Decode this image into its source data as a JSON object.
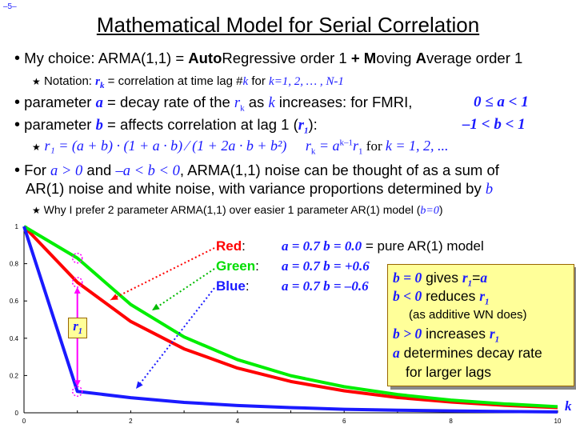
{
  "page_number": "–5–",
  "title": "Mathematical Model for Serial Correlation",
  "bullets": {
    "b1_prefix": "My choice: ARMA(1,1) = ",
    "b1_auto": "Auto",
    "b1_regressive": "Regressive",
    "b1_order1a": " order 1 ",
    "b1_plus": "+",
    "b1_moving": "M",
    "b1_oving": "oving ",
    "b1_average": "A",
    "b1_verage": "verage order 1",
    "s1_label": "Notation:",
    "s1_r": "r",
    "s1_k": "k",
    "s1_eq": " = correlation at time lag #",
    "s1_kvar": "k",
    "s1_for": " for ",
    "s1_range": "k=1, 2, … , N-1",
    "b2_text1": "parameter ",
    "b2_a": "a",
    "b2_text2": " = decay rate of the ",
    "b2_r": "r",
    "b2_k": "k",
    "b2_text3": " as ",
    "b2_kvar": "k",
    "b2_text4": " increases: for FMRI,",
    "b2_range": "0 ≤ a < 1",
    "b3_text1": "parameter ",
    "b3_b": "b",
    "b3_text2": " = affects correlation at lag 1 (",
    "b3_r1": "r",
    "b3_1": "1",
    "b3_text3": "):",
    "b3_range": "–1 < b < 1",
    "s2_formula": "r₁ = (a + b) · (1 + a · b) ⁄ (1 + 2a · b + b²)",
    "s2_rk": "r",
    "s2_rk_sub": "k",
    "s2_eq": " = a",
    "s2_exp": "k–1",
    "s2_r1": "r",
    "s2_r1_sub": "1",
    "s2_for": " for ",
    "s2_krange": "k = 1, 2, ...",
    "b4_text1": "For ",
    "b4_cond1": "a > 0",
    "b4_and": " and ",
    "b4_cond2": "–a < b < 0",
    "b4_text2": ", ARMA(1,1) noise can be thought of as a sum of",
    "b4_line2": "AR(1) noise and white noise, with variance proportions determined by ",
    "b4_b": "b",
    "s3_text": "Why I prefer 2 parameter ARMA(1,1) over easier 1 parameter AR(1) model (",
    "s3_b0": "b=0",
    "s3_close": ")"
  },
  "legend": {
    "red_label": "Red",
    "red_colon": ":",
    "red_params": "a = 0.7  b =   0.0",
    "red_desc": " = pure AR(1) model",
    "green_label": "Green",
    "green_colon": ":",
    "green_params": "a = 0.7  b = +0.6",
    "blue_label": "Blue",
    "blue_colon": ":",
    "blue_params": "a = 0.7  b = –0.6"
  },
  "note_box": {
    "l1_b": "b = 0",
    "l1_text": " gives ",
    "l1_r": "r",
    "l1_sub": "1",
    "l1_eq": "=",
    "l1_a": "a",
    "l2_b": "b < 0",
    "l2_text": " reduces ",
    "l2_r": "r",
    "l2_sub": "1",
    "l3_text": "(as additive WN does)",
    "l4_b": "b > 0",
    "l4_text": " increases ",
    "l4_r": "r",
    "l4_sub": "1",
    "l5_a": "a",
    "l5_text": " determines decay rate",
    "l6_text": "for larger lags"
  },
  "r1_marker": "r",
  "r1_marker_sub": "1",
  "axis_k_label": "k",
  "colors": {
    "red": "#ff0000",
    "green": "#00ee00",
    "blue": "#1a1aff",
    "magenta": "#ff00ff",
    "accent_blue": "#1a1aff"
  },
  "chart_data": {
    "type": "line",
    "x": [
      0,
      1,
      2,
      3,
      4,
      5,
      6,
      7,
      8,
      9,
      10
    ],
    "xticks": [
      0,
      2,
      4,
      6,
      8,
      10
    ],
    "yticks": [
      0,
      0.2,
      0.4,
      0.6,
      0.8,
      1
    ],
    "xlim": [
      0,
      10
    ],
    "ylim": [
      0,
      1
    ],
    "series": [
      {
        "name": "Red",
        "color": "#ff0000",
        "values": [
          1,
          0.7,
          0.49,
          0.343,
          0.24,
          0.168,
          0.118,
          0.082,
          0.058,
          0.04,
          0.028
        ]
      },
      {
        "name": "Green",
        "color": "#00ee00",
        "values": [
          1,
          0.83,
          0.581,
          0.407,
          0.285,
          0.199,
          0.14,
          0.098,
          0.068,
          0.048,
          0.033
        ]
      },
      {
        "name": "Blue",
        "color": "#1a1aff",
        "values": [
          1,
          0.115,
          0.081,
          0.056,
          0.039,
          0.028,
          0.019,
          0.014,
          0.01,
          0.007,
          0.005
        ]
      }
    ],
    "highlighted_points": [
      {
        "x": 1,
        "y": 0.83
      },
      {
        "x": 1,
        "y": 0.7
      },
      {
        "x": 1,
        "y": 0.115
      }
    ]
  }
}
